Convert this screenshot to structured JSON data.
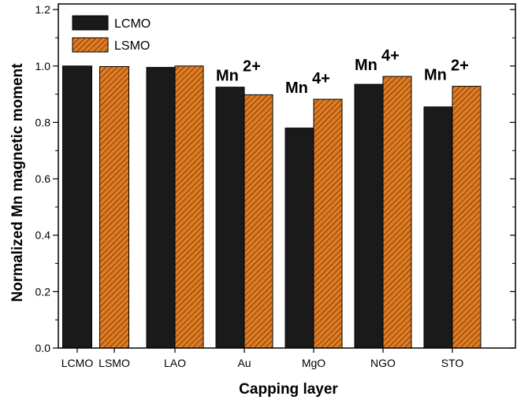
{
  "chart_data": {
    "type": "bar",
    "categories": [
      "LCMO",
      "LSMO",
      "LAO",
      "Au",
      "MgO",
      "NGO",
      "STO"
    ],
    "series": [
      {
        "name": "LCMO",
        "values": [
          1.0,
          null,
          0.995,
          0.925,
          0.78,
          0.935,
          0.855
        ],
        "color": "#1a1a1a",
        "pattern": "solid"
      },
      {
        "name": "LSMO",
        "values": [
          null,
          0.998,
          1.0,
          0.898,
          0.882,
          0.963,
          0.928
        ],
        "color": "#e07b22",
        "pattern": "hatched"
      }
    ],
    "xlabel": "Capping layer",
    "ylabel": "Normalized Mn magnetic moment",
    "ylim": [
      0,
      1.22
    ],
    "yticks": [
      "0.0",
      "0.2",
      "0.4",
      "0.6",
      "0.8",
      "1.0",
      "1.2"
    ],
    "legend_position": "top-left",
    "annotations": [
      {
        "category": "Au",
        "text": "Mn",
        "superscript": "2+"
      },
      {
        "category": "MgO",
        "text": "Mn",
        "superscript": "4+"
      },
      {
        "category": "NGO",
        "text": "Mn",
        "superscript": "4+"
      },
      {
        "category": "STO",
        "text": "Mn",
        "superscript": "2+"
      }
    ]
  }
}
